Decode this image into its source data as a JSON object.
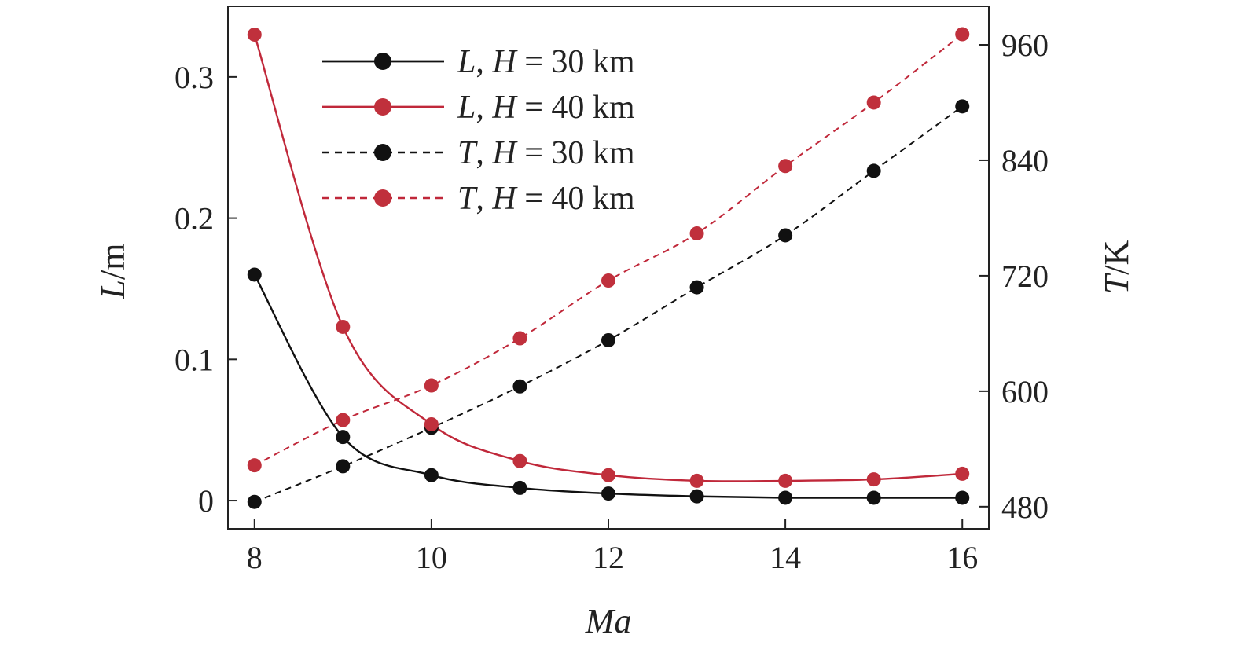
{
  "chart_data": {
    "type": "line",
    "x": [
      8,
      9,
      10,
      11,
      12,
      13,
      14,
      15,
      16
    ],
    "xlabel": "Ma",
    "ylabel_left": "L/m",
    "ylabel_right": "T/K",
    "xlim": [
      7.7,
      16.3
    ],
    "ylim_left": [
      -0.02,
      0.35
    ],
    "ylim_right": [
      457,
      1000
    ],
    "xticks": [
      "8",
      "10",
      "12",
      "14",
      "16"
    ],
    "yticks_left": [
      "0",
      "0.1",
      "0.2",
      "0.3"
    ],
    "yticks_right": [
      "480",
      "600",
      "720",
      "840",
      "960"
    ],
    "colors": {
      "black": "#111111",
      "red": "#c0283a",
      "red_marker": "#c0303c"
    },
    "series": [
      {
        "name": "L, H = 30 km",
        "axis": "left",
        "color": "#111111",
        "style": "solid",
        "values": [
          0.16,
          0.045,
          0.018,
          0.009,
          0.005,
          0.003,
          0.002,
          0.002,
          0.002
        ]
      },
      {
        "name": "L, H = 40 km",
        "axis": "left",
        "color": "#c0283a",
        "style": "solid",
        "values": [
          0.33,
          0.123,
          0.054,
          0.028,
          0.018,
          0.014,
          0.014,
          0.015,
          0.019
        ]
      },
      {
        "name": "T, H = 30 km",
        "axis": "right",
        "color": "#111111",
        "style": "dashed",
        "values": [
          485,
          522,
          562,
          605,
          653,
          708,
          762,
          829,
          896
        ]
      },
      {
        "name": "T, H = 40 km",
        "axis": "right",
        "color": "#c0283a",
        "style": "dashed",
        "values": [
          523,
          570,
          606,
          655,
          715,
          764,
          834,
          900,
          971
        ]
      }
    ],
    "legend": {
      "placement": "top-left",
      "entries": [
        {
          "var": "L",
          "sep": ", ",
          "h": "H",
          "rest": " = 30 km"
        },
        {
          "var": "L",
          "sep": ", ",
          "h": "H",
          "rest": " = 40 km"
        },
        {
          "var": "T",
          "sep": ", ",
          "h": "H",
          "rest": " = 30 km"
        },
        {
          "var": "T",
          "sep": ", ",
          "h": "H",
          "rest": " = 40 km"
        }
      ]
    },
    "grid": false
  }
}
